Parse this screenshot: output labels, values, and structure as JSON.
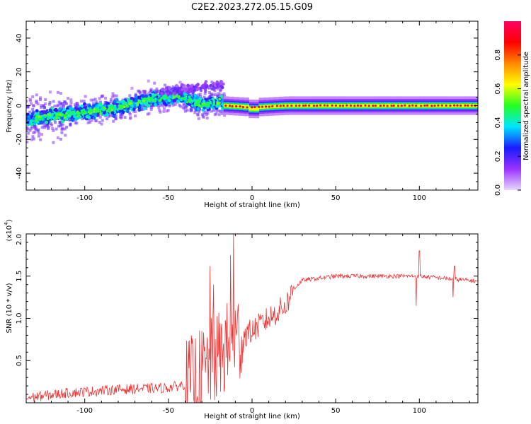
{
  "figure": {
    "title": "C2E2.2023.272.05.15.G09"
  },
  "chart_data": [
    {
      "type": "heatmap",
      "xlabel": "Height of straight line (km)",
      "ylabel": "Frequency (Hz)",
      "xlim": [
        -135,
        135
      ],
      "ylim": [
        -50,
        50
      ],
      "x_ticks": [
        -100,
        -50,
        0,
        50,
        100
      ],
      "y_ticks": [
        -40,
        -20,
        0,
        20,
        40
      ],
      "colorbar": {
        "label": "Normalized spectral amplitude",
        "range": [
          0,
          1
        ],
        "ticks": [
          "0.0",
          "0.2",
          "0.4",
          "0.6",
          "0.8"
        ],
        "colormap": [
          "#e8d8ff",
          "#9933ff",
          "#1a1aff",
          "#00e5ff",
          "#22ff22",
          "#ffff00",
          "#ff8800",
          "#ff0000",
          "#ff0066"
        ]
      },
      "ridge": [
        {
          "x": -135,
          "y": -8,
          "amp": 0.35
        },
        {
          "x": -120,
          "y": -6,
          "amp": 0.42
        },
        {
          "x": -100,
          "y": -4,
          "amp": 0.45
        },
        {
          "x": -80,
          "y": -1,
          "amp": 0.48
        },
        {
          "x": -60,
          "y": 4,
          "amp": 0.5
        },
        {
          "x": -45,
          "y": 6,
          "amp": 0.5
        },
        {
          "x": -30,
          "y": 1,
          "amp": 0.52
        },
        {
          "x": -18,
          "y": 2,
          "amp": 0.6
        },
        {
          "x": -17,
          "y": 0,
          "amp": 0.85
        },
        {
          "x": 0,
          "y": -1,
          "amp": 0.88
        },
        {
          "x": 20,
          "y": 0,
          "amp": 0.9
        },
        {
          "x": 100,
          "y": 0,
          "amp": 0.9
        },
        {
          "x": 135,
          "y": 0,
          "amp": 0.85
        }
      ]
    },
    {
      "type": "line",
      "xlabel": "Height of straight line (km)",
      "ylabel": "SNR (10 * v/v)",
      "multiplier": "(x10^4)",
      "multiplier_base": "(x10",
      "multiplier_exp": "4",
      "xlim": [
        -135,
        135
      ],
      "ylim": [
        0,
        2.0
      ],
      "x_ticks": [
        -100,
        -50,
        0,
        50,
        100
      ],
      "y_ticks": [
        "0.5",
        "1.0",
        "1.5",
        "2.0"
      ],
      "color": "#ee3333",
      "envelope": [
        {
          "x": -135,
          "y": 0.04
        },
        {
          "x": -110,
          "y": 0.1
        },
        {
          "x": -80,
          "y": 0.14
        },
        {
          "x": -50,
          "y": 0.16
        },
        {
          "x": -40,
          "y": 0.2
        },
        {
          "x": -30,
          "y": 0.35
        },
        {
          "x": -20,
          "y": 0.55
        },
        {
          "x": -10,
          "y": 0.75
        },
        {
          "x": 0,
          "y": 0.85
        },
        {
          "x": 10,
          "y": 1.0
        },
        {
          "x": 20,
          "y": 1.15
        },
        {
          "x": 25,
          "y": 1.35
        },
        {
          "x": 30,
          "y": 1.45
        },
        {
          "x": 50,
          "y": 1.5
        },
        {
          "x": 100,
          "y": 1.5
        },
        {
          "x": 135,
          "y": 1.44
        }
      ],
      "spikes": [
        {
          "x": -25,
          "y": 1.62
        },
        {
          "x": -23,
          "y": 1.4
        },
        {
          "x": -13,
          "y": 1.75
        },
        {
          "x": -11,
          "y": 2.0
        },
        {
          "x": 98,
          "y": 1.15
        },
        {
          "x": 100,
          "y": 1.8
        },
        {
          "x": 120,
          "y": 1.25
        },
        {
          "x": 121,
          "y": 1.62
        }
      ]
    }
  ]
}
